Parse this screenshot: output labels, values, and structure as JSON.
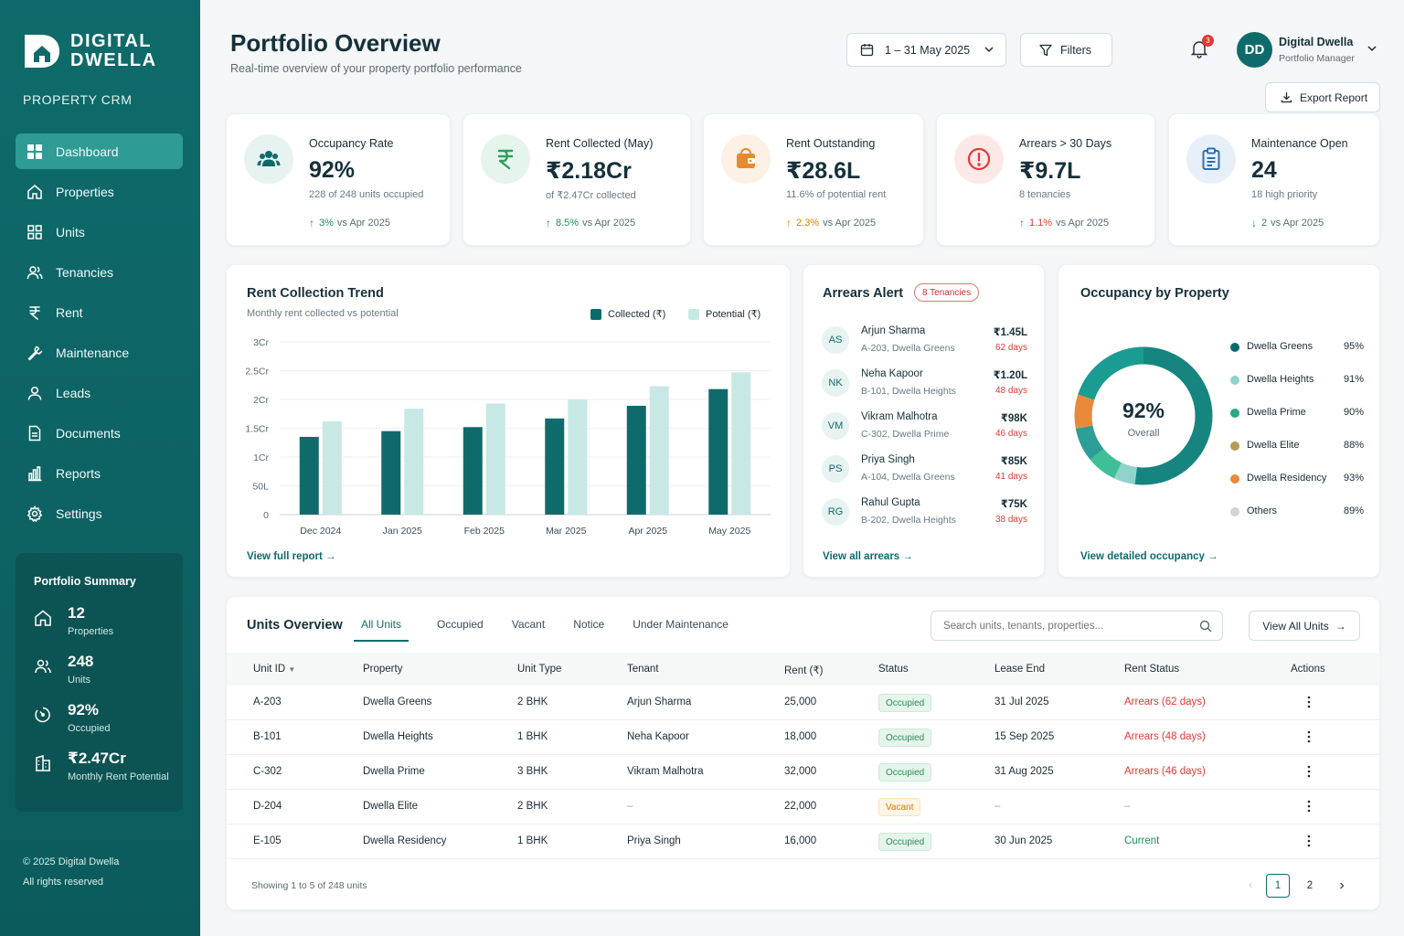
{
  "brand": {
    "name_line1": "DIGITAL",
    "name_line2": "DWELLA",
    "subtitle": "PROPERTY CRM"
  },
  "nav": {
    "items": [
      {
        "label": "Dashboard",
        "icon": "dashboard-icon",
        "active": true
      },
      {
        "label": "Properties",
        "icon": "home-icon"
      },
      {
        "label": "Units",
        "icon": "grid-icon"
      },
      {
        "label": "Tenancies",
        "icon": "users-icon"
      },
      {
        "label": "Rent",
        "icon": "rupee-icon"
      },
      {
        "label": "Maintenance",
        "icon": "wrench-icon"
      },
      {
        "label": "Leads",
        "icon": "user-icon"
      },
      {
        "label": "Documents",
        "icon": "document-icon"
      },
      {
        "label": "Reports",
        "icon": "bar-chart-icon"
      },
      {
        "label": "Settings",
        "icon": "gear-icon"
      }
    ]
  },
  "summary": {
    "title": "Portfolio Summary",
    "items": [
      {
        "value": "12",
        "label": "Properties",
        "icon": "home-icon"
      },
      {
        "value": "248",
        "label": "Units",
        "icon": "users-icon"
      },
      {
        "value": "92%",
        "label": "Occupied",
        "icon": "gauge-icon"
      },
      {
        "value": "₹2.47Cr",
        "label": "Monthly Rent Potential",
        "icon": "building-icon"
      }
    ]
  },
  "footer": {
    "line1": "© 2025 Digital Dwella",
    "line2": "All rights reserved"
  },
  "header": {
    "title": "Portfolio Overview",
    "subtitle": "Real-time overview of your property portfolio performance",
    "date_range": "1 – 31 May 2025",
    "filters_label": "Filters",
    "notification_count": "3",
    "export_label": "Export Report",
    "user": {
      "initials": "DD",
      "name": "Digital Dwella",
      "role": "Portfolio Manager"
    }
  },
  "kpis": [
    {
      "label": "Occupancy Rate",
      "value": "92%",
      "sub": "228 of 248 units occupied",
      "change": "3%",
      "period": "vs Apr 2025",
      "direction": "up",
      "change_color": "#1e8e5a",
      "icon": "users-icon",
      "icon_color": "#0f6b6b",
      "icon_bg": "#e6f3f1"
    },
    {
      "label": "Rent Collected (May)",
      "value": "₹2.18Cr",
      "sub": "of ₹2.47Cr collected",
      "change": "8.5%",
      "period": "vs Apr 2025",
      "direction": "up",
      "change_color": "#1e8e5a",
      "icon": "rupee-icon",
      "icon_color": "#2e9e5b",
      "icon_bg": "#e6f5ec"
    },
    {
      "label": "Rent Outstanding",
      "value": "₹28.6L",
      "sub": "11.6% of potential rent",
      "change": "2.3%",
      "period": "vs Apr 2025",
      "direction": "up",
      "change_color": "#e07b00",
      "icon": "wallet-icon",
      "icon_color": "#e58a2e",
      "icon_bg": "#fdf0e4"
    },
    {
      "label": "Arrears > 30 Days",
      "value": "₹9.7L",
      "sub": "8 tenancies",
      "change": "1.1%",
      "period": "vs Apr 2025",
      "direction": "up",
      "change_color": "#e53935",
      "icon": "alert-icon",
      "icon_color": "#e53935",
      "icon_bg": "#fde8e8"
    },
    {
      "label": "Maintenance Open",
      "value": "24",
      "sub": "18 high priority",
      "change": "2",
      "period": "vs Apr 2025",
      "direction": "down",
      "change_color": "#1e8e5a",
      "icon": "clipboard-icon",
      "icon_color": "#2f6fb0",
      "icon_bg": "#e7f0f9"
    }
  ],
  "rent_trend": {
    "title": "Rent Collection Trend",
    "subtitle": "Monthly rent collected vs potential",
    "link": "View full report",
    "colors": {
      "collected": "#0f6b6b",
      "potential": "#c8e8e6"
    }
  },
  "chart_data": {
    "type": "bar",
    "categories": [
      "Dec 2024",
      "Jan 2025",
      "Feb 2025",
      "Mar 2025",
      "Apr 2025",
      "May 2025"
    ],
    "series": [
      {
        "name": "Collected (₹)",
        "values": [
          1.35,
          1.45,
          1.52,
          1.67,
          1.89,
          2.18
        ]
      },
      {
        "name": "Potential (₹)",
        "values": [
          1.62,
          1.84,
          1.93,
          2.0,
          2.23,
          2.47
        ]
      }
    ],
    "y_ticks": [
      {
        "v": 0,
        "label": "0"
      },
      {
        "v": 0.5,
        "label": "50L"
      },
      {
        "v": 1,
        "label": "1Cr"
      },
      {
        "v": 1.5,
        "label": "1.5Cr"
      },
      {
        "v": 2,
        "label": "2Cr"
      },
      {
        "v": 2.5,
        "label": "2.5Cr"
      },
      {
        "v": 3,
        "label": "3Cr"
      }
    ],
    "ylim": [
      0,
      3
    ],
    "grid": true,
    "legend": "top-right"
  },
  "arrears": {
    "title": "Arrears Alert",
    "badge": "8 Tenancies",
    "link": "View all arrears",
    "items": [
      {
        "initials": "AS",
        "name": "Arjun Sharma",
        "unit": "A-203, Dwella Greens",
        "amount": "₹1.45L",
        "days": "62 days"
      },
      {
        "initials": "NK",
        "name": "Neha Kapoor",
        "unit": "B-101, Dwella Heights",
        "amount": "₹1.20L",
        "days": "48 days"
      },
      {
        "initials": "VM",
        "name": "Vikram Malhotra",
        "unit": "C-302, Dwella Prime",
        "amount": "₹98K",
        "days": "46 days"
      },
      {
        "initials": "PS",
        "name": "Priya Singh",
        "unit": "A-104, Dwella Greens",
        "amount": "₹85K",
        "days": "41 days"
      },
      {
        "initials": "RG",
        "name": "Rahul Gupta",
        "unit": "B-202, Dwella Heights",
        "amount": "₹75K",
        "days": "38 days"
      }
    ]
  },
  "occupancy": {
    "title": "Occupancy by Property",
    "center_value": "92%",
    "center_label": "Overall",
    "link": "View detailed occupancy",
    "items": [
      {
        "name": "Dwella Greens",
        "pct": "95%",
        "share": 0.52,
        "color": "#17857f"
      },
      {
        "name": "Dwella Heights",
        "pct": "91%",
        "share": 0.05,
        "color": "#8fd3cb"
      },
      {
        "name": "Dwella Prime",
        "pct": "90%",
        "share": 0.07,
        "color": "#3fbf95"
      },
      {
        "name": "Dwella Elite",
        "pct": "88%",
        "share": 0.08,
        "color": "#2c9e96"
      },
      {
        "name": "Dwella Residency",
        "pct": "93%",
        "share": 0.08,
        "color": "#e98a3a"
      },
      {
        "name": "Others",
        "pct": "89%",
        "share": 0.2,
        "color": "#1b9c92"
      }
    ],
    "legend_colors": [
      "#0f6b6b",
      "#8fd3cb",
      "#2aa887",
      "#b59a5a",
      "#e98a3a",
      "#cfd6d9"
    ]
  },
  "units": {
    "title": "Units Overview",
    "tabs": [
      "All Units",
      "Occupied",
      "Vacant",
      "Notice",
      "Under Maintenance"
    ],
    "search_placeholder": "Search units, tenants, properties...",
    "view_all": "View All Units",
    "columns": [
      "Unit ID",
      "Property",
      "Unit Type",
      "Tenant",
      "Rent (₹)",
      "Status",
      "Lease End",
      "Rent Status",
      "Actions"
    ],
    "rows": [
      {
        "id": "A-203",
        "property": "Dwella Greens",
        "type": "2 BHK",
        "tenant": "Arjun Sharma",
        "rent": "25,000",
        "status": "Occupied",
        "lease": "31 Jul 2025",
        "rent_status": "Arrears (62 days)",
        "rs_color": "#e53935"
      },
      {
        "id": "B-101",
        "property": "Dwella Heights",
        "type": "1 BHK",
        "tenant": "Neha Kapoor",
        "rent": "18,000",
        "status": "Occupied",
        "lease": "15 Sep 2025",
        "rent_status": "Arrears (48 days)",
        "rs_color": "#e53935"
      },
      {
        "id": "C-302",
        "property": "Dwella Prime",
        "type": "3 BHK",
        "tenant": "Vikram Malhotra",
        "rent": "32,000",
        "status": "Occupied",
        "lease": "31 Aug 2025",
        "rent_status": "Arrears (46 days)",
        "rs_color": "#e53935"
      },
      {
        "id": "D-204",
        "property": "Dwella Elite",
        "type": "2 BHK",
        "tenant": "–",
        "rent": "22,000",
        "status": "Vacant",
        "lease": "–",
        "rent_status": "–",
        "rs_color": "#9aa6ab"
      },
      {
        "id": "E-105",
        "property": "Dwella Residency",
        "type": "1 BHK",
        "tenant": "Priya Singh",
        "rent": "16,000",
        "status": "Occupied",
        "lease": "30 Jun 2025",
        "rent_status": "Current",
        "rs_color": "#1e8e5a"
      }
    ],
    "footer": "Showing 1 to 5 of 248 units",
    "pages": [
      "1",
      "2"
    ]
  }
}
